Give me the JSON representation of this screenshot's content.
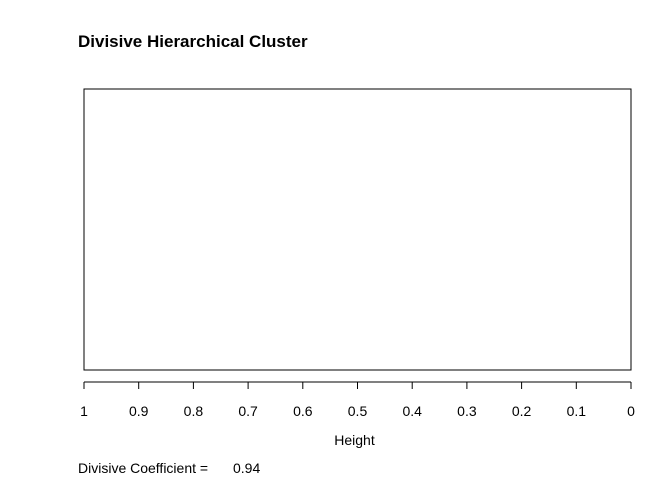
{
  "chart_data": {
    "type": "dendrogram",
    "title": "Divisive Hierarchical Cluster",
    "xlabel": "Height",
    "ylabel": "",
    "xlim": [
      1,
      0
    ],
    "x_ticks": [
      1,
      0.9,
      0.8,
      0.7,
      0.6,
      0.5,
      0.4,
      0.3,
      0.2,
      0.1,
      0
    ],
    "x_tick_labels": [
      "1",
      "0.9",
      "0.8",
      "0.7",
      "0.6",
      "0.5",
      "0.4",
      "0.3",
      "0.2",
      "0.1",
      "0"
    ],
    "grid": false,
    "legend": "none",
    "series": []
  },
  "footnote": {
    "label": "Divisive Coefficient =",
    "value": "0.94"
  },
  "colors": {
    "background": "#ffffff",
    "frame": "#000000",
    "text": "#000000"
  }
}
